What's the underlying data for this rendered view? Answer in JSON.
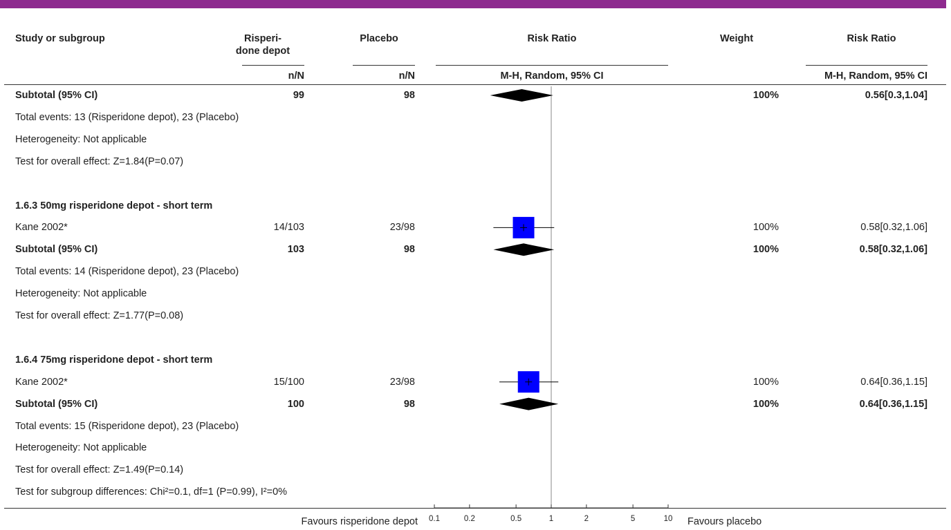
{
  "accent_color": "#8e2a8f",
  "marker_color": "#0000ff",
  "header": {
    "col_study": "Study or subgroup",
    "col_exp_line1": "Risperi-",
    "col_exp_line2": "done depot",
    "col_ctrl": "Placebo",
    "col_plot": "Risk Ratio",
    "col_weight": "Weight",
    "col_rr": "Risk Ratio",
    "sub_exp": "n/N",
    "sub_ctrl": "n/N",
    "sub_plot": "M-H, Random, 95% CI",
    "sub_rr": "M-H, Random, 95% CI"
  },
  "rows": [
    {
      "kind": "subtotal",
      "label": "Subtotal (95% CI)",
      "exp": "99",
      "ctrl": "98",
      "weight": "100%",
      "rr_text": "0.56[0.3,1.04]",
      "rr": 0.56,
      "lo": 0.3,
      "hi": 1.04
    },
    {
      "kind": "note",
      "label": "Total events: 13 (Risperidone depot), 23 (Placebo)"
    },
    {
      "kind": "note",
      "label": "Heterogeneity: Not applicable"
    },
    {
      "kind": "note",
      "label": "Test for overall effect: Z=1.84(P=0.07)"
    },
    {
      "kind": "blank"
    },
    {
      "kind": "group",
      "label": "1.6.3 50mg risperidone depot - short term"
    },
    {
      "kind": "study",
      "label": "Kane 2002*",
      "exp": "14/103",
      "ctrl": "23/98",
      "weight": "100%",
      "rr_text": "0.58[0.32,1.06]",
      "rr": 0.58,
      "lo": 0.32,
      "hi": 1.06
    },
    {
      "kind": "subtotal",
      "label": "Subtotal (95% CI)",
      "exp": "103",
      "ctrl": "98",
      "weight": "100%",
      "rr_text": "0.58[0.32,1.06]",
      "rr": 0.58,
      "lo": 0.32,
      "hi": 1.06
    },
    {
      "kind": "note",
      "label": "Total events: 14 (Risperidone depot), 23 (Placebo)"
    },
    {
      "kind": "note",
      "label": "Heterogeneity: Not applicable"
    },
    {
      "kind": "note",
      "label": "Test for overall effect: Z=1.77(P=0.08)"
    },
    {
      "kind": "blank"
    },
    {
      "kind": "group",
      "label": "1.6.4 75mg risperidone depot - short term"
    },
    {
      "kind": "study",
      "label": "Kane 2002*",
      "exp": "15/100",
      "ctrl": "23/98",
      "weight": "100%",
      "rr_text": "0.64[0.36,1.15]",
      "rr": 0.64,
      "lo": 0.36,
      "hi": 1.15
    },
    {
      "kind": "subtotal",
      "label": "Subtotal (95% CI)",
      "exp": "100",
      "ctrl": "98",
      "weight": "100%",
      "rr_text": "0.64[0.36,1.15]",
      "rr": 0.64,
      "lo": 0.36,
      "hi": 1.15
    },
    {
      "kind": "note",
      "label": "Total events: 15 (Risperidone depot), 23 (Placebo)"
    },
    {
      "kind": "note",
      "label": "Heterogeneity: Not applicable"
    },
    {
      "kind": "note",
      "label": "Test for overall effect: Z=1.49(P=0.14)"
    },
    {
      "kind": "note",
      "label": "Test for subgroup differences: Chi²=0.1, df=1 (P=0.99), I²=0%"
    }
  ],
  "footer": {
    "favours_left": "Favours risperidone depot",
    "favours_right": "Favours placebo"
  },
  "chart_data": {
    "type": "forest",
    "x_scale": "log",
    "xlim": [
      0.1,
      10
    ],
    "x_ticks": [
      "0.1",
      "0.2",
      "0.5",
      "1",
      "2",
      "5",
      "10"
    ],
    "reference_line": 1,
    "series": [
      {
        "label": "Subtotal (95% CI)",
        "rr": 0.56,
        "lo": 0.3,
        "hi": 1.04,
        "marker": "diamond"
      },
      {
        "label": "Kane 2002* (50mg)",
        "rr": 0.58,
        "lo": 0.32,
        "hi": 1.06,
        "marker": "square"
      },
      {
        "label": "Subtotal (95% CI)",
        "rr": 0.58,
        "lo": 0.32,
        "hi": 1.06,
        "marker": "diamond"
      },
      {
        "label": "Kane 2002* (75mg)",
        "rr": 0.64,
        "lo": 0.36,
        "hi": 1.15,
        "marker": "square"
      },
      {
        "label": "Subtotal (95% CI)",
        "rr": 0.64,
        "lo": 0.36,
        "hi": 1.15,
        "marker": "diamond"
      }
    ]
  }
}
